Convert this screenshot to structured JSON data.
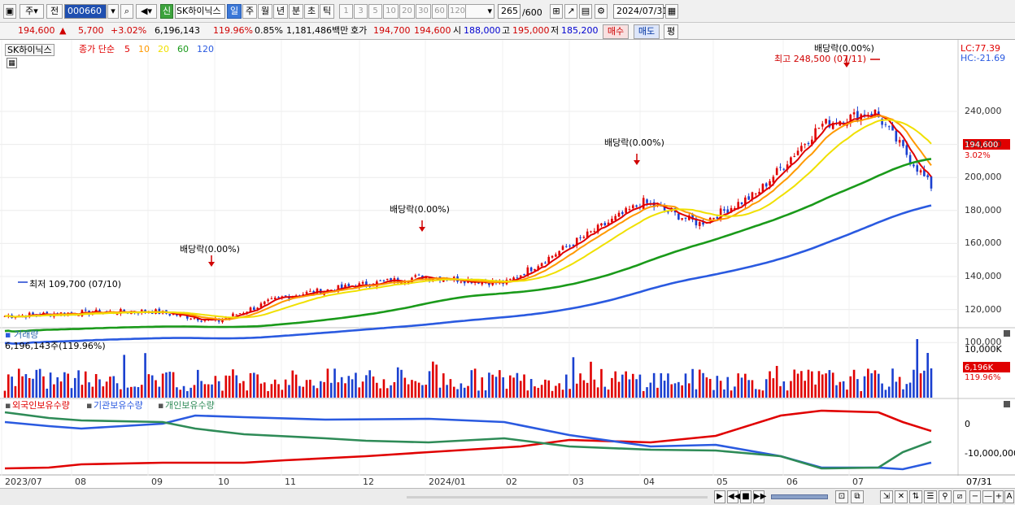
{
  "toolbar": {
    "market_select": "주",
    "type_select": "전",
    "code": "000660",
    "credit_badge": "신",
    "stock_name": "SK하이닉스",
    "periods": [
      "일",
      "주",
      "월",
      "년",
      "분",
      "초",
      "틱"
    ],
    "active_period": "일",
    "intervals": [
      "1",
      "3",
      "5",
      "10",
      "20",
      "30",
      "60",
      "120"
    ],
    "count": "265",
    "count_max": "/600",
    "date": "2024/07/31"
  },
  "quote": {
    "price": "194,600",
    "change": "5,700",
    "change_pct": "+3.02%",
    "volume": "6,196,143",
    "volume_ratio": "119.96%",
    "turnover": "0.85%",
    "amount": "1,181,486백만",
    "ask_label": "호가",
    "ask": "194,700",
    "bid": "194,600",
    "open_label": "시",
    "open": "188,000",
    "high_label": "고",
    "high": "195,000",
    "low_label": "저",
    "low": "185,200",
    "buy_button": "매수",
    "sell_button": "매도",
    "eval_button": "평"
  },
  "price_panel": {
    "stock_tag": "SK하이닉스",
    "ma_title": "종가 단순",
    "ma_periods": [
      "5",
      "10",
      "20",
      "60",
      "120"
    ],
    "ma_colors": [
      "#e00000",
      "#ff9900",
      "#f0e000",
      "#1a9a1a",
      "#2a5ae0"
    ],
    "lc": "LC:77.39",
    "hc": "HC:-21.69",
    "y_ticks": [
      "240,000",
      "220,000",
      "200,000",
      "180,000",
      "160,000",
      "140,000",
      "120,000",
      "100,000"
    ],
    "current_price_tag": "194,600",
    "current_pct_tag": "3.02%",
    "max_label": "최고 248,500 (07/11)",
    "min_label": "최저 109,700 (07/10)",
    "dividend_labels": [
      "배당락(0.00%)",
      "배당락(0.00%)",
      "배당락(0.00%)",
      "배당락(0.00%)"
    ]
  },
  "volume_panel": {
    "title": "거래량",
    "info": "6,196,143주(119.96%)",
    "tick": "10,000K",
    "value_tag": "6,196K",
    "pct_tag": "119.96%"
  },
  "holdings_panel": {
    "series": [
      "외국인보유수량",
      "기관보유수량",
      "개인보유수량"
    ],
    "series_colors": [
      "#e00000",
      "#2a5ae0",
      "#2e8b57"
    ],
    "ticks": [
      "0",
      "-10,000,000"
    ]
  },
  "x_axis": {
    "labels": [
      "2023/07",
      "08",
      "09",
      "10",
      "11",
      "12",
      "2024/01",
      "02",
      "03",
      "04",
      "05",
      "06",
      "07"
    ],
    "right_label": "07/31"
  },
  "chart_data": {
    "type": "candlestick",
    "period": "daily",
    "x_range": [
      "2023/07",
      "2024/07/31"
    ],
    "y_range": [
      90000,
      250000
    ],
    "approx_close": [
      {
        "month": "2023/07",
        "close": 116000
      },
      {
        "month": "2023/08",
        "close": 118000
      },
      {
        "month": "2023/09",
        "close": 119000
      },
      {
        "month": "2023/10",
        "close": 120000
      },
      {
        "month": "2023/11",
        "close": 128000
      },
      {
        "month": "2023/12",
        "close": 135000
      },
      {
        "month": "2024/01",
        "close": 137000
      },
      {
        "month": "2024/02",
        "close": 138000
      },
      {
        "month": "2024/03",
        "close": 160000
      },
      {
        "month": "2024/04",
        "close": 180000
      },
      {
        "month": "2024/05",
        "close": 178000
      },
      {
        "month": "2024/06",
        "close": 220000
      },
      {
        "month": "2024/07",
        "close": 194600
      }
    ]
  }
}
